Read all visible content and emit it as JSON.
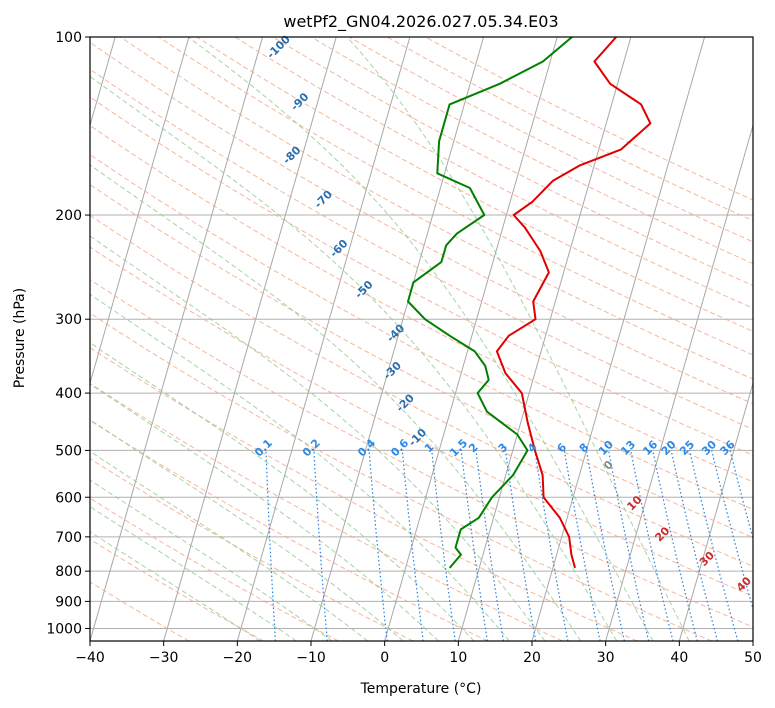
{
  "chart_data": {
    "type": "line",
    "title": "wetPf2_GN04.2026.027.05.34.E03",
    "xlabel": "Temperature (°C)",
    "ylabel": "Pressure (hPa)",
    "xlim": [
      -40,
      50
    ],
    "ylim": [
      1050,
      100
    ],
    "y_scale": "log",
    "grid": true,
    "x_ticks": [
      "−40",
      "−30",
      "−20",
      "−10",
      "0",
      "10",
      "20",
      "30",
      "40",
      "50"
    ],
    "y_ticks": [
      "100",
      "200",
      "300",
      "400",
      "500",
      "600",
      "700",
      "800",
      "900",
      "1000"
    ],
    "series": [
      {
        "color": "#e00000",
        "points": [
          [
            8,
            100
          ],
          [
            6,
            110
          ],
          [
            9,
            120
          ],
          [
            14,
            130
          ],
          [
            16,
            140
          ],
          [
            13,
            155
          ],
          [
            8,
            165
          ],
          [
            5,
            175
          ],
          [
            3,
            190
          ],
          [
            1,
            200
          ],
          [
            3,
            210
          ],
          [
            6,
            230
          ],
          [
            8,
            250
          ],
          [
            7,
            280
          ],
          [
            8,
            300
          ],
          [
            5,
            320
          ],
          [
            4,
            340
          ],
          [
            6,
            370
          ],
          [
            9,
            400
          ],
          [
            11,
            450
          ],
          [
            13,
            500
          ],
          [
            15,
            550
          ],
          [
            16,
            600
          ],
          [
            19,
            650
          ],
          [
            21,
            700
          ],
          [
            22,
            750
          ],
          [
            23,
            790
          ]
        ]
      },
      {
        "color": "#008000",
        "points": [
          [
            2,
            100
          ],
          [
            -1,
            110
          ],
          [
            -6,
            120
          ],
          [
            -12,
            130
          ],
          [
            -12,
            150
          ],
          [
            -11,
            170
          ],
          [
            -6,
            180
          ],
          [
            -3,
            200
          ],
          [
            -6,
            215
          ],
          [
            -7,
            225
          ],
          [
            -7,
            240
          ],
          [
            -10,
            260
          ],
          [
            -10,
            280
          ],
          [
            -7,
            300
          ],
          [
            -3,
            320
          ],
          [
            1,
            340
          ],
          [
            3,
            360
          ],
          [
            4,
            380
          ],
          [
            3,
            400
          ],
          [
            5,
            430
          ],
          [
            10,
            470
          ],
          [
            12,
            500
          ],
          [
            11,
            550
          ],
          [
            9,
            600
          ],
          [
            8,
            650
          ],
          [
            6,
            680
          ],
          [
            6,
            700
          ],
          [
            6,
            730
          ],
          [
            7,
            750
          ],
          [
            6,
            790
          ]
        ]
      }
    ],
    "annotations": {
      "mixing_ratio": {
        "pressure": 500,
        "labels": [
          "0.1",
          "0.2",
          "0.4",
          "0.6",
          "1",
          "1.5",
          "2",
          "3",
          "4",
          "6",
          "8",
          "10",
          "13",
          "16",
          "20",
          "25",
          "30",
          "36"
        ],
        "temps": [
          -23.5,
          -17,
          -9.5,
          -5,
          -1,
          3,
          5,
          9,
          13,
          17,
          20,
          23,
          26,
          29,
          31.5,
          34,
          37,
          39.5
        ]
      },
      "dry_adiabats": {
        "labels": [
          "-100",
          "-90",
          "-80",
          "-70",
          "-60",
          "-50",
          "-40",
          "-30",
          "-20",
          "-10"
        ],
        "points": [
          [
            -37,
            105
          ],
          [
            -32,
            130
          ],
          [
            -31,
            160
          ],
          [
            -25,
            190
          ],
          [
            -21,
            230
          ],
          [
            -16,
            270
          ],
          [
            -10,
            320
          ],
          [
            -9,
            370
          ],
          [
            -6,
            420
          ],
          [
            -3,
            480
          ]
        ]
      },
      "moist_adiabats": {
        "labels": [
          "0",
          "10",
          "20",
          "30",
          "40"
        ],
        "points": [
          [
            24,
            535
          ],
          [
            29,
            620
          ],
          [
            34,
            700
          ],
          [
            41,
            770
          ],
          [
            47,
            850
          ]
        ],
        "zero_color": "#888888"
      }
    }
  }
}
